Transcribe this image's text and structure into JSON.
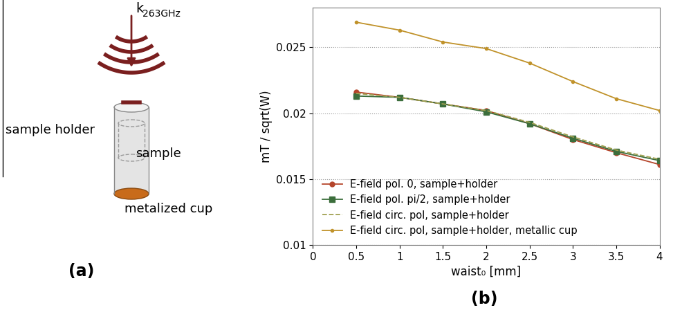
{
  "diagram": {
    "wave_label": {
      "symbol": "k",
      "subscript": "263GHz"
    },
    "holder_label": "sample holder",
    "sample_label": "sample",
    "cup_label": "metalized cup",
    "panel_label": "(a)"
  },
  "chart_data": {
    "type": "line",
    "panel_label": "(b)",
    "x_label": "waist₀ [mm]",
    "y_label": "mT / sqrt(W)",
    "x": [
      0.5,
      1,
      1.5,
      2,
      2.5,
      3,
      3.5,
      4
    ],
    "xlim": [
      0,
      4
    ],
    "xticks": [
      0,
      0.5,
      1,
      1.5,
      2,
      2.5,
      3,
      3.5,
      4
    ],
    "ylim": [
      0.01,
      0.028
    ],
    "yticks": [
      0.01,
      0.015,
      0.02,
      0.025
    ],
    "grid": true,
    "legend": "lower left",
    "series": [
      {
        "name": "E-field pol. 0, sample+holder",
        "color": "#b5452b",
        "marker": "circle",
        "line_style": "solid",
        "values": [
          0.0216,
          0.0212,
          0.0207,
          0.0202,
          0.0192,
          0.018,
          0.017,
          0.0161
        ]
      },
      {
        "name": "E-field pol. pi/2, sample+holder",
        "color": "#3c6e3c",
        "marker": "square",
        "line_style": "solid",
        "values": [
          0.0213,
          0.0212,
          0.0207,
          0.0201,
          0.0192,
          0.0181,
          0.0171,
          0.0164
        ]
      },
      {
        "name": "E-field circ. pol, sample+holder",
        "color": "#a0a050",
        "marker": "none",
        "line_style": "dashed",
        "values": [
          0.0215,
          0.0212,
          0.0207,
          0.0202,
          0.0193,
          0.0182,
          0.0172,
          0.0165
        ]
      },
      {
        "name": "E-field circ. pol, sample+holder, metallic cup",
        "color": "#c0922a",
        "marker": "dot",
        "line_style": "solid",
        "values": [
          0.0269,
          0.0263,
          0.0254,
          0.0249,
          0.0238,
          0.0224,
          0.0211,
          0.0202
        ]
      }
    ]
  }
}
